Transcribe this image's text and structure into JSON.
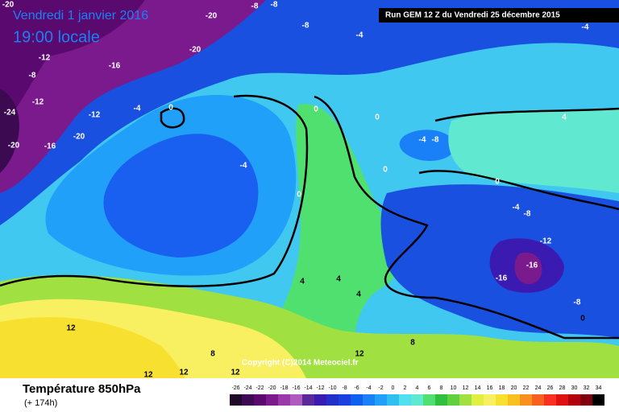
{
  "header": {
    "date": "Vendredi 1 janvier 2016",
    "time": "19:00 locale",
    "run": "Run GEM 12 Z du Vendredi 25 décembre 2015"
  },
  "copyright": "Copyright (C)2014 Meteociel.fr",
  "footer": {
    "title": "Température 850hPa",
    "lead": "(+ 174h)"
  },
  "scale": {
    "labels": [
      "-26",
      "-24",
      "-22",
      "-20",
      "-18",
      "-16",
      "-14",
      "-12",
      "-10",
      "-8",
      "-6",
      "-4",
      "-2",
      "0",
      "2",
      "4",
      "6",
      "8",
      "10",
      "12",
      "14",
      "16",
      "18",
      "20",
      "22",
      "24",
      "26",
      "28",
      "30",
      "32",
      "34"
    ],
    "colors": [
      "#1e0a28",
      "#3c0a50",
      "#5a0a6e",
      "#7a1a8c",
      "#9a3aa8",
      "#b05ac0",
      "#5a2a9a",
      "#3a1ab0",
      "#2030c8",
      "#1a40e0",
      "#1060f0",
      "#1a80f8",
      "#20a0f8",
      "#30c0f0",
      "#50e0f0",
      "#60e8d0",
      "#50e070",
      "#30c040",
      "#60d040",
      "#a0e040",
      "#e0f040",
      "#f8f060",
      "#f8e030",
      "#f8c020",
      "#f89020",
      "#f86020",
      "#f83020",
      "#e01010",
      "#b00010",
      "#800010",
      "#000000"
    ]
  },
  "contour_labels": [
    "-20",
    "-20",
    "-8",
    "-8",
    "-8",
    "-4",
    "-4",
    "-12",
    "-16",
    "-8",
    "-20",
    "-12",
    "-12",
    "-4",
    "0",
    "-24",
    "-20",
    "-16",
    "-20",
    "0",
    "0",
    "-4",
    "-8",
    "4",
    "-4",
    "0",
    "0",
    "0",
    "-4",
    "-8",
    "-12",
    "-16",
    "-16",
    "4",
    "4",
    "4",
    "-8",
    "0",
    "12",
    "8",
    "8",
    "12",
    "12",
    "12",
    "12"
  ]
}
